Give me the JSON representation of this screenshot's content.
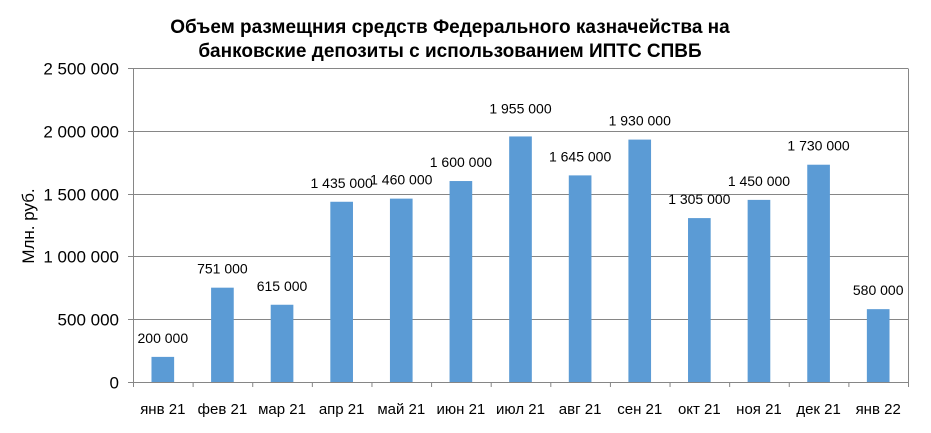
{
  "chart_data": {
    "type": "bar",
    "title_lines": [
      "Объем размещния средств Федерального казначейства на",
      "банковские депозиты с использованием ИПТС СПВБ"
    ],
    "ylabel": "Млн. руб.",
    "xlabel": "",
    "ylim": [
      0,
      2500000
    ],
    "y_ticks": [
      0,
      500000,
      1000000,
      1500000,
      2000000,
      2500000
    ],
    "y_tick_labels": [
      "0",
      "500 000",
      "1 000 000",
      "1 500 000",
      "2 000 000",
      "2 500 000"
    ],
    "grid": true,
    "legend": "none",
    "bar_color": "#5b9bd5",
    "categories": [
      "янв 21",
      "фев 21",
      "мар 21",
      "апр 21",
      "май 21",
      "июн 21",
      "июл 21",
      "авг 21",
      "сен 21",
      "окт 21",
      "ноя 21",
      "дек 21",
      "янв 22"
    ],
    "values": [
      200000,
      751000,
      615000,
      1435000,
      1460000,
      1600000,
      1955000,
      1645000,
      1930000,
      1305000,
      1450000,
      1730000,
      580000
    ],
    "data_labels": [
      "200 000",
      "751 000",
      "615 000",
      "1 435 000",
      "1 460 000",
      "1 600 000",
      "1 955 000",
      "1 645 000",
      "1 930 000",
      "1 305 000",
      "1 450 000",
      "1 730 000",
      "580 000"
    ]
  }
}
